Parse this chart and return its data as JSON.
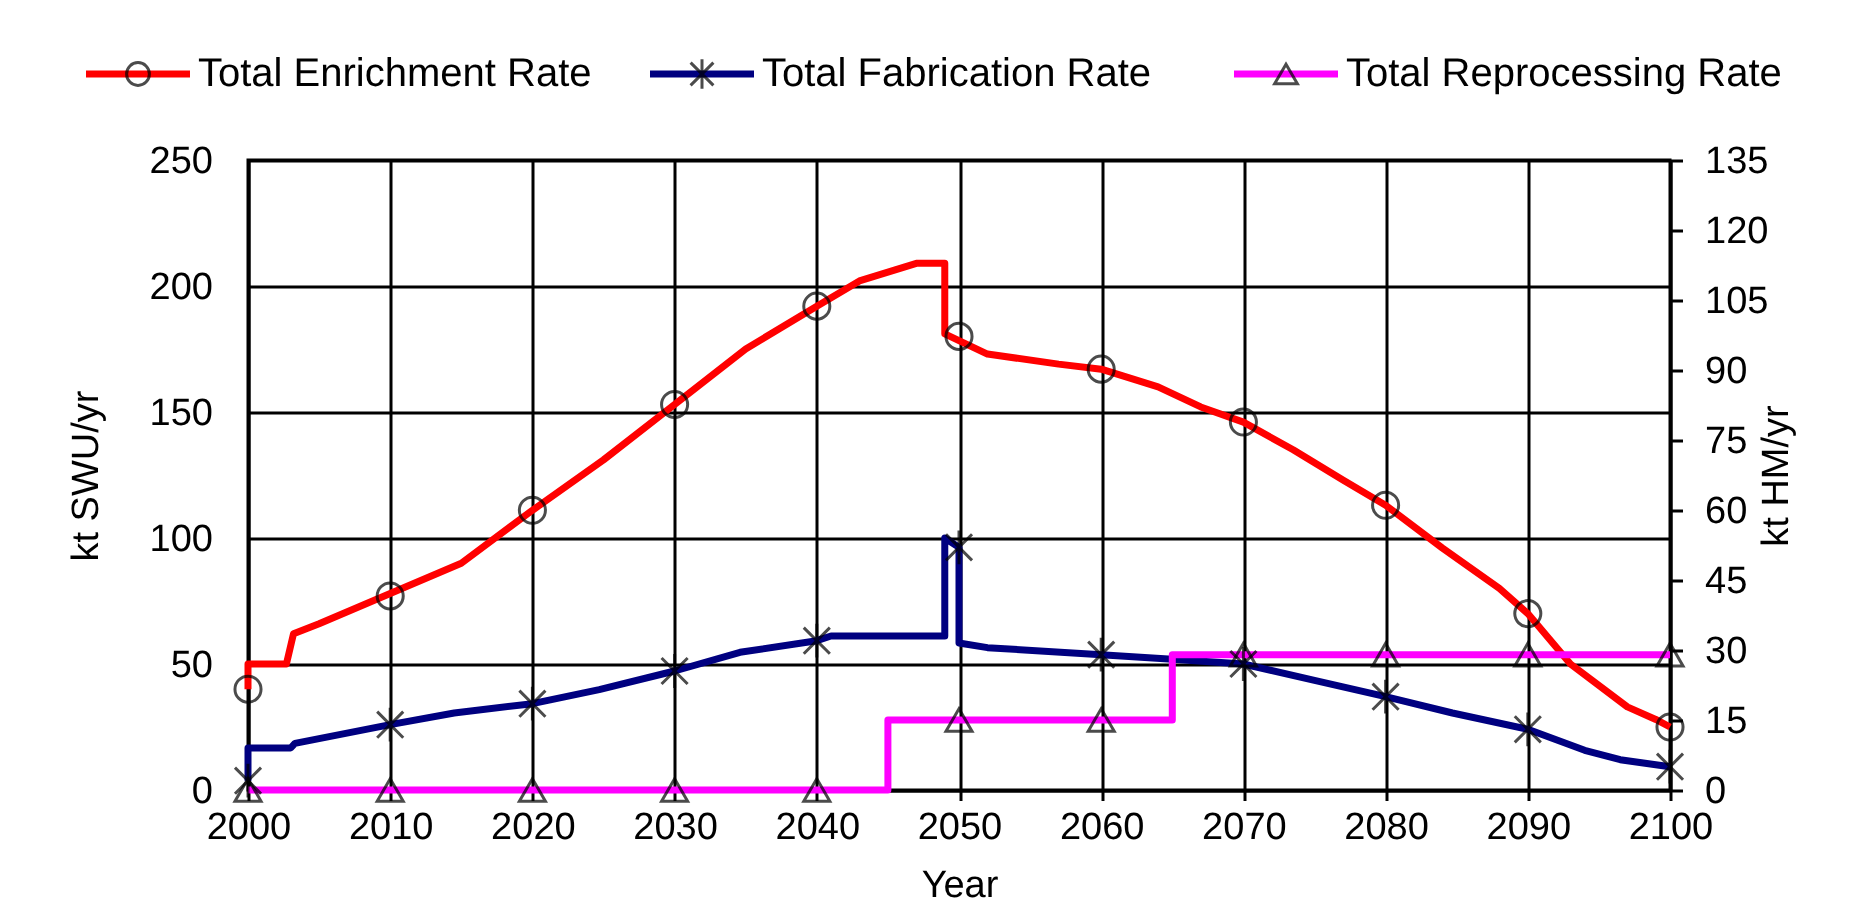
{
  "chart_data": {
    "type": "line",
    "xlabel": "Year",
    "ylabel": "kt SWU/yr",
    "y2label": "kt HM/yr",
    "xlim": [
      2000,
      2100
    ],
    "xticks": [
      2000,
      2010,
      2020,
      2030,
      2040,
      2050,
      2060,
      2070,
      2080,
      2090,
      2100
    ],
    "ylim": [
      0,
      250
    ],
    "yticks": [
      0,
      50,
      100,
      150,
      200,
      250
    ],
    "y2lim": [
      0,
      135
    ],
    "y2ticks": [
      0,
      15,
      30,
      45,
      60,
      75,
      90,
      105,
      120,
      135
    ],
    "grid": true,
    "legend": "top",
    "series": [
      {
        "name": "Total Enrichment Rate",
        "color": "#ff0000",
        "x": [
          2000,
          2000,
          2002.7,
          2003.2,
          2005,
          2010,
          2015,
          2020,
          2025,
          2030,
          2035,
          2040,
          2043,
          2047,
          2049,
          2049,
          2052,
          2057,
          2060,
          2064,
          2067,
          2070,
          2073.5,
          2077,
          2080,
          2084,
          2088,
          2090,
          2093,
          2097,
          2099,
          2100
        ],
        "values": [
          40,
          50,
          50,
          62,
          66,
          78,
          90,
          111,
          131,
          153,
          175,
          192,
          202,
          209,
          209,
          181,
          173,
          169,
          167,
          160,
          152,
          146,
          135,
          123,
          113,
          96,
          80,
          70,
          50,
          33,
          28,
          25
        ]
      },
      {
        "name": "Total Fabrication Rate",
        "axis": "y2",
        "color": "#000080",
        "x": [
          2000,
          2000,
          2003,
          2003.3,
          2010,
          2014.5,
          2020,
          2024.7,
          2030,
          2034.6,
          2040,
          2041,
          2049,
          2049,
          2050,
          2050,
          2052,
          2060,
          2065,
          2070,
          2075,
          2080,
          2084.7,
          2090,
          2094,
          2096.5,
          2100
        ],
        "values": [
          2,
          9,
          9,
          10,
          14,
          16.5,
          18.5,
          21.5,
          25.5,
          29.5,
          32,
          33,
          33,
          54,
          52,
          31.5,
          30.5,
          29,
          28,
          27,
          23.5,
          20,
          16.5,
          13,
          8.5,
          6.5,
          5
        ]
      },
      {
        "name": "Total Reprocessing Rate",
        "type": "step",
        "axis": "y2",
        "color": "#ff00ff",
        "x": [
          2000,
          2045,
          2065,
          2100
        ],
        "values": [
          0,
          15,
          29,
          29
        ]
      },
      {
        "type": "scatter",
        "color": "#000000",
        "marker": "circle",
        "x": [
          2000,
          2010,
          2020,
          2030,
          2040,
          2050,
          2060,
          2070,
          2080,
          2090,
          2100
        ],
        "values": [
          40,
          77,
          111,
          153,
          192,
          180,
          167,
          146,
          113,
          70,
          25
        ]
      },
      {
        "type": "scatter",
        "axis": "y2",
        "color": "#000000",
        "marker": "cross",
        "x": [
          2000,
          2010,
          2020,
          2030,
          2040,
          2050,
          2060,
          2070,
          2080,
          2090,
          2100
        ],
        "values": [
          2,
          14,
          18.5,
          25.5,
          32,
          52,
          29,
          27,
          20,
          13,
          5
        ]
      },
      {
        "type": "scatter",
        "axis": "y2",
        "color": "#000000",
        "marker": "triangle",
        "x": [
          2000,
          2010,
          2020,
          2030,
          2040,
          2050,
          2060,
          2070,
          2080,
          2090,
          2100
        ],
        "values": [
          0,
          0,
          0,
          0,
          0,
          15,
          15,
          29,
          29,
          29,
          29
        ]
      }
    ]
  }
}
